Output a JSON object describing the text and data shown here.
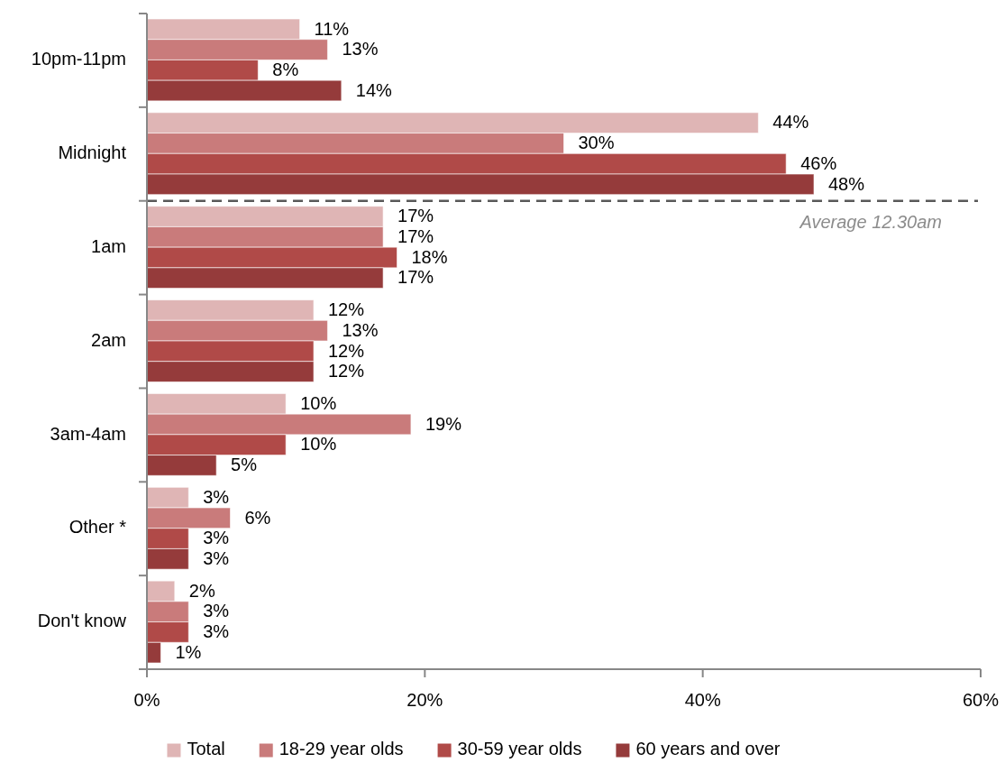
{
  "chart_data": {
    "type": "bar",
    "orientation": "horizontal",
    "categories": [
      "10pm-11pm",
      "Midnight",
      "1am",
      "2am",
      "3am-4am",
      "Other *",
      "Don't know"
    ],
    "series": [
      {
        "name": "Total",
        "color": "#dfb5b5",
        "values": [
          11,
          44,
          17,
          12,
          10,
          3,
          2
        ],
        "value_labels": [
          "11%",
          "44%",
          "17%",
          "12%",
          "10%",
          "3%",
          "2%"
        ]
      },
      {
        "name": "18-29 year olds",
        "color": "#c97b7b",
        "values": [
          13,
          30,
          17,
          13,
          19,
          6,
          3
        ],
        "value_labels": [
          "13%",
          "30%",
          "17%",
          "13%",
          "19%",
          "6%",
          "3%"
        ]
      },
      {
        "name": "30-59 year olds",
        "color": "#b04a48",
        "values": [
          8,
          46,
          18,
          12,
          10,
          3,
          3
        ],
        "value_labels": [
          "8%",
          "46%",
          "18%",
          "12%",
          "10%",
          "3%",
          "3%"
        ]
      },
      {
        "name": "60 years and over",
        "color": "#953b3b",
        "values": [
          14,
          48,
          17,
          12,
          5,
          3,
          1
        ],
        "value_labels": [
          "14%",
          "48%",
          "17%",
          "12%",
          "5%",
          "3%",
          "1%"
        ]
      }
    ],
    "xlim": [
      0,
      60
    ],
    "xticks": [
      {
        "value": 0,
        "label": "0%"
      },
      {
        "value": 20,
        "label": "20%"
      },
      {
        "value": 40,
        "label": "40%"
      },
      {
        "value": 60,
        "label": "60%"
      }
    ],
    "legend": "bottom",
    "annotations": [
      "Average 12.30am"
    ]
  }
}
